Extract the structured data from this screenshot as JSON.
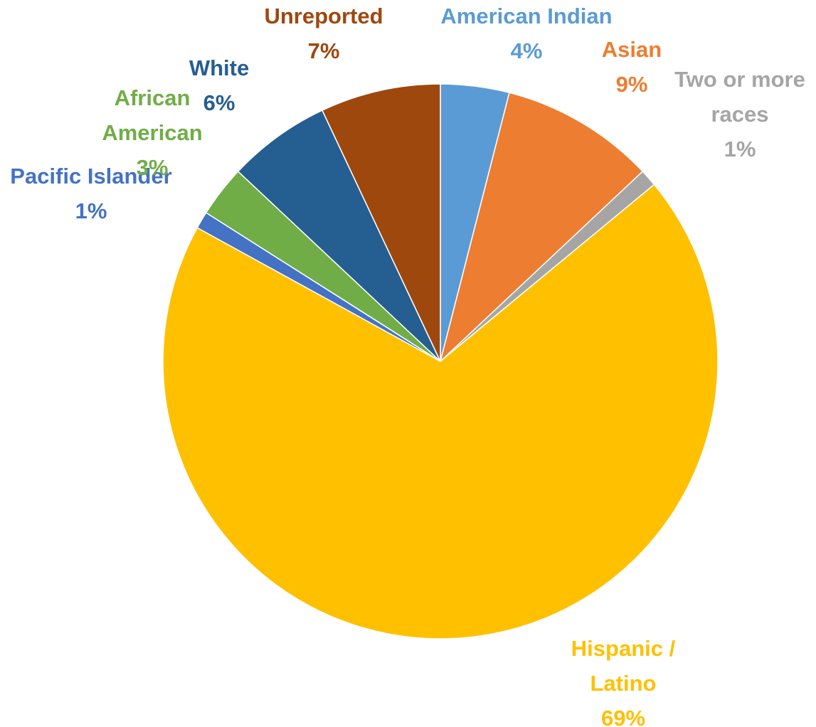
{
  "chart_data": {
    "type": "pie",
    "start_angle_deg": 0,
    "direction": "clockwise",
    "slices": [
      {
        "key": "american-indian",
        "label_lines": [
          "American Indian"
        ],
        "value": 4,
        "value_label": "4%",
        "color": "#5b9bd5"
      },
      {
        "key": "asian",
        "label_lines": [
          "Asian"
        ],
        "value": 9,
        "value_label": "9%",
        "color": "#ed7d31"
      },
      {
        "key": "two-or-more-races",
        "label_lines": [
          "Two or more",
          "races"
        ],
        "value": 1,
        "value_label": "1%",
        "color": "#a5a5a5"
      },
      {
        "key": "hispanic-latino",
        "label_lines": [
          "Hispanic /",
          "Latino"
        ],
        "value": 69,
        "value_label": "69%",
        "color": "#ffc000"
      },
      {
        "key": "pacific-islander",
        "label_lines": [
          "Pacific Islander"
        ],
        "value": 1,
        "value_label": "1%",
        "color": "#4472c4"
      },
      {
        "key": "african-american",
        "label_lines": [
          "African",
          "American"
        ],
        "value": 3,
        "value_label": "3%",
        "color": "#70ad47"
      },
      {
        "key": "white",
        "label_lines": [
          "White"
        ],
        "value": 6,
        "value_label": "6%",
        "color": "#255e91"
      },
      {
        "key": "unreported",
        "label_lines": [
          "Unreported"
        ],
        "value": 7,
        "value_label": "7%",
        "color": "#9e480e"
      }
    ]
  }
}
